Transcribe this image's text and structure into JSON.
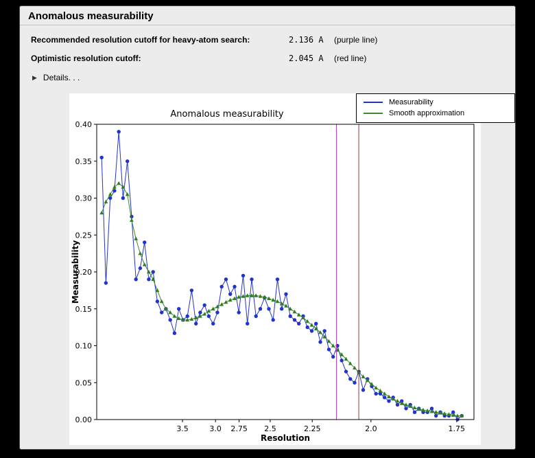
{
  "window": {
    "title": "Anomalous measurability"
  },
  "info": {
    "rows": [
      {
        "label": "Recommended resolution cutoff for heavy-atom search:",
        "value": "2.136 A",
        "note": "(purple line)"
      },
      {
        "label": "Optimistic resolution cutoff:",
        "value": "2.045 A",
        "note": "(red line)"
      }
    ],
    "details_label": "Details. . ."
  },
  "chart_data": {
    "type": "line",
    "title": "Anomalous measurability",
    "xlabel": "Resolution",
    "ylabel": "Measurability",
    "ylim": [
      0.0,
      0.4
    ],
    "y_ticks": [
      "0.00",
      "0.05",
      "0.10",
      "0.15",
      "0.20",
      "0.25",
      "0.30",
      "0.35",
      "0.40"
    ],
    "x_axis": {
      "units": "resolution d-spacing in Angstrom, plotted against 1/d^2 (high resolution at right)",
      "s2_range": [
        0.005,
        0.342
      ],
      "ticks": [
        {
          "label": "3.5",
          "d": 3.5
        },
        {
          "label": "3.0",
          "d": 3.0
        },
        {
          "label": "2.75",
          "d": 2.75
        },
        {
          "label": "2.5",
          "d": 2.5
        },
        {
          "label": "2.25",
          "d": 2.25
        },
        {
          "label": "2.0",
          "d": 2.0
        },
        {
          "label": "1.75",
          "d": 1.75
        }
      ]
    },
    "x_s2": [
      0.0094,
      0.01323,
      0.01706,
      0.02089,
      0.02472,
      0.02855,
      0.03238,
      0.03621,
      0.04004,
      0.04387,
      0.0477,
      0.05153,
      0.05536,
      0.05919,
      0.06302,
      0.06685,
      0.07068,
      0.07451,
      0.07834,
      0.08217,
      0.086,
      0.08983,
      0.09366,
      0.09749,
      0.10132,
      0.10515,
      0.10898,
      0.11281,
      0.11664,
      0.12047,
      0.1243,
      0.12813,
      0.13196,
      0.13579,
      0.13962,
      0.14345,
      0.14728,
      0.15111,
      0.15494,
      0.15877,
      0.1626,
      0.16643,
      0.17026,
      0.17409,
      0.17792,
      0.18175,
      0.18558,
      0.18941,
      0.19324,
      0.19707,
      0.2009,
      0.20473,
      0.20856,
      0.21239,
      0.21622,
      0.22005,
      0.22388,
      0.22771,
      0.23154,
      0.23537,
      0.2392,
      0.24303,
      0.24686,
      0.25069,
      0.25452,
      0.25835,
      0.26218,
      0.26601,
      0.26984,
      0.27367,
      0.2775,
      0.28133,
      0.28516,
      0.28899,
      0.29282,
      0.29665,
      0.30048,
      0.30431,
      0.30814,
      0.31197,
      0.3158,
      0.31963,
      0.32346,
      0.32729,
      0.33112
    ],
    "series": [
      {
        "name": "Measurability",
        "color": "#2233cc",
        "marker": "circle",
        "values": [
          0.355,
          0.185,
          0.3,
          0.31,
          0.39,
          0.3,
          0.35,
          0.275,
          0.19,
          0.205,
          0.24,
          0.19,
          0.2,
          0.16,
          0.145,
          0.15,
          0.135,
          0.117,
          0.15,
          0.135,
          0.14,
          0.175,
          0.13,
          0.145,
          0.155,
          0.14,
          0.13,
          0.145,
          0.18,
          0.19,
          0.17,
          0.18,
          0.145,
          0.195,
          0.13,
          0.19,
          0.14,
          0.15,
          0.165,
          0.15,
          0.135,
          0.19,
          0.15,
          0.17,
          0.14,
          0.135,
          0.13,
          0.14,
          0.125,
          0.12,
          0.13,
          0.105,
          0.12,
          0.095,
          0.085,
          0.1,
          0.08,
          0.065,
          0.055,
          0.05,
          0.065,
          0.04,
          0.055,
          0.045,
          0.035,
          0.035,
          0.03,
          0.025,
          0.03,
          0.02,
          0.025,
          0.015,
          0.02,
          0.01,
          0.015,
          0.01,
          0.01,
          0.015,
          0.005,
          0.01,
          0.005,
          0.005,
          0.01,
          0.0,
          0.005
        ]
      },
      {
        "name": "Smooth approximation",
        "color": "#3d8a28",
        "marker": "triangle",
        "marker_color": "#2e7d1e",
        "values": [
          0.28,
          0.295,
          0.305,
          0.315,
          0.32,
          0.315,
          0.305,
          0.27,
          0.245,
          0.225,
          0.21,
          0.2,
          0.19,
          0.175,
          0.16,
          0.15,
          0.145,
          0.14,
          0.137,
          0.135,
          0.135,
          0.136,
          0.138,
          0.14,
          0.143,
          0.147,
          0.15,
          0.153,
          0.156,
          0.159,
          0.162,
          0.164,
          0.166,
          0.167,
          0.168,
          0.168,
          0.168,
          0.167,
          0.166,
          0.164,
          0.162,
          0.16,
          0.157,
          0.154,
          0.15,
          0.146,
          0.142,
          0.138,
          0.133,
          0.128,
          0.123,
          0.118,
          0.112,
          0.106,
          0.1,
          0.094,
          0.088,
          0.082,
          0.076,
          0.07,
          0.064,
          0.058,
          0.053,
          0.048,
          0.043,
          0.039,
          0.035,
          0.031,
          0.028,
          0.025,
          0.022,
          0.02,
          0.018,
          0.016,
          0.014,
          0.013,
          0.012,
          0.011,
          0.01,
          0.009,
          0.008,
          0.007,
          0.006,
          0.005,
          0.005
        ]
      }
    ],
    "vlines": [
      {
        "name": "purple-cutoff-line",
        "d": 2.136,
        "color": "#b040c0"
      },
      {
        "name": "red-cutoff-line",
        "d": 2.045,
        "color": "#a03232"
      }
    ],
    "legend": {
      "position": "top-right",
      "entries": [
        "Measurability",
        "Smooth approximation"
      ]
    }
  }
}
